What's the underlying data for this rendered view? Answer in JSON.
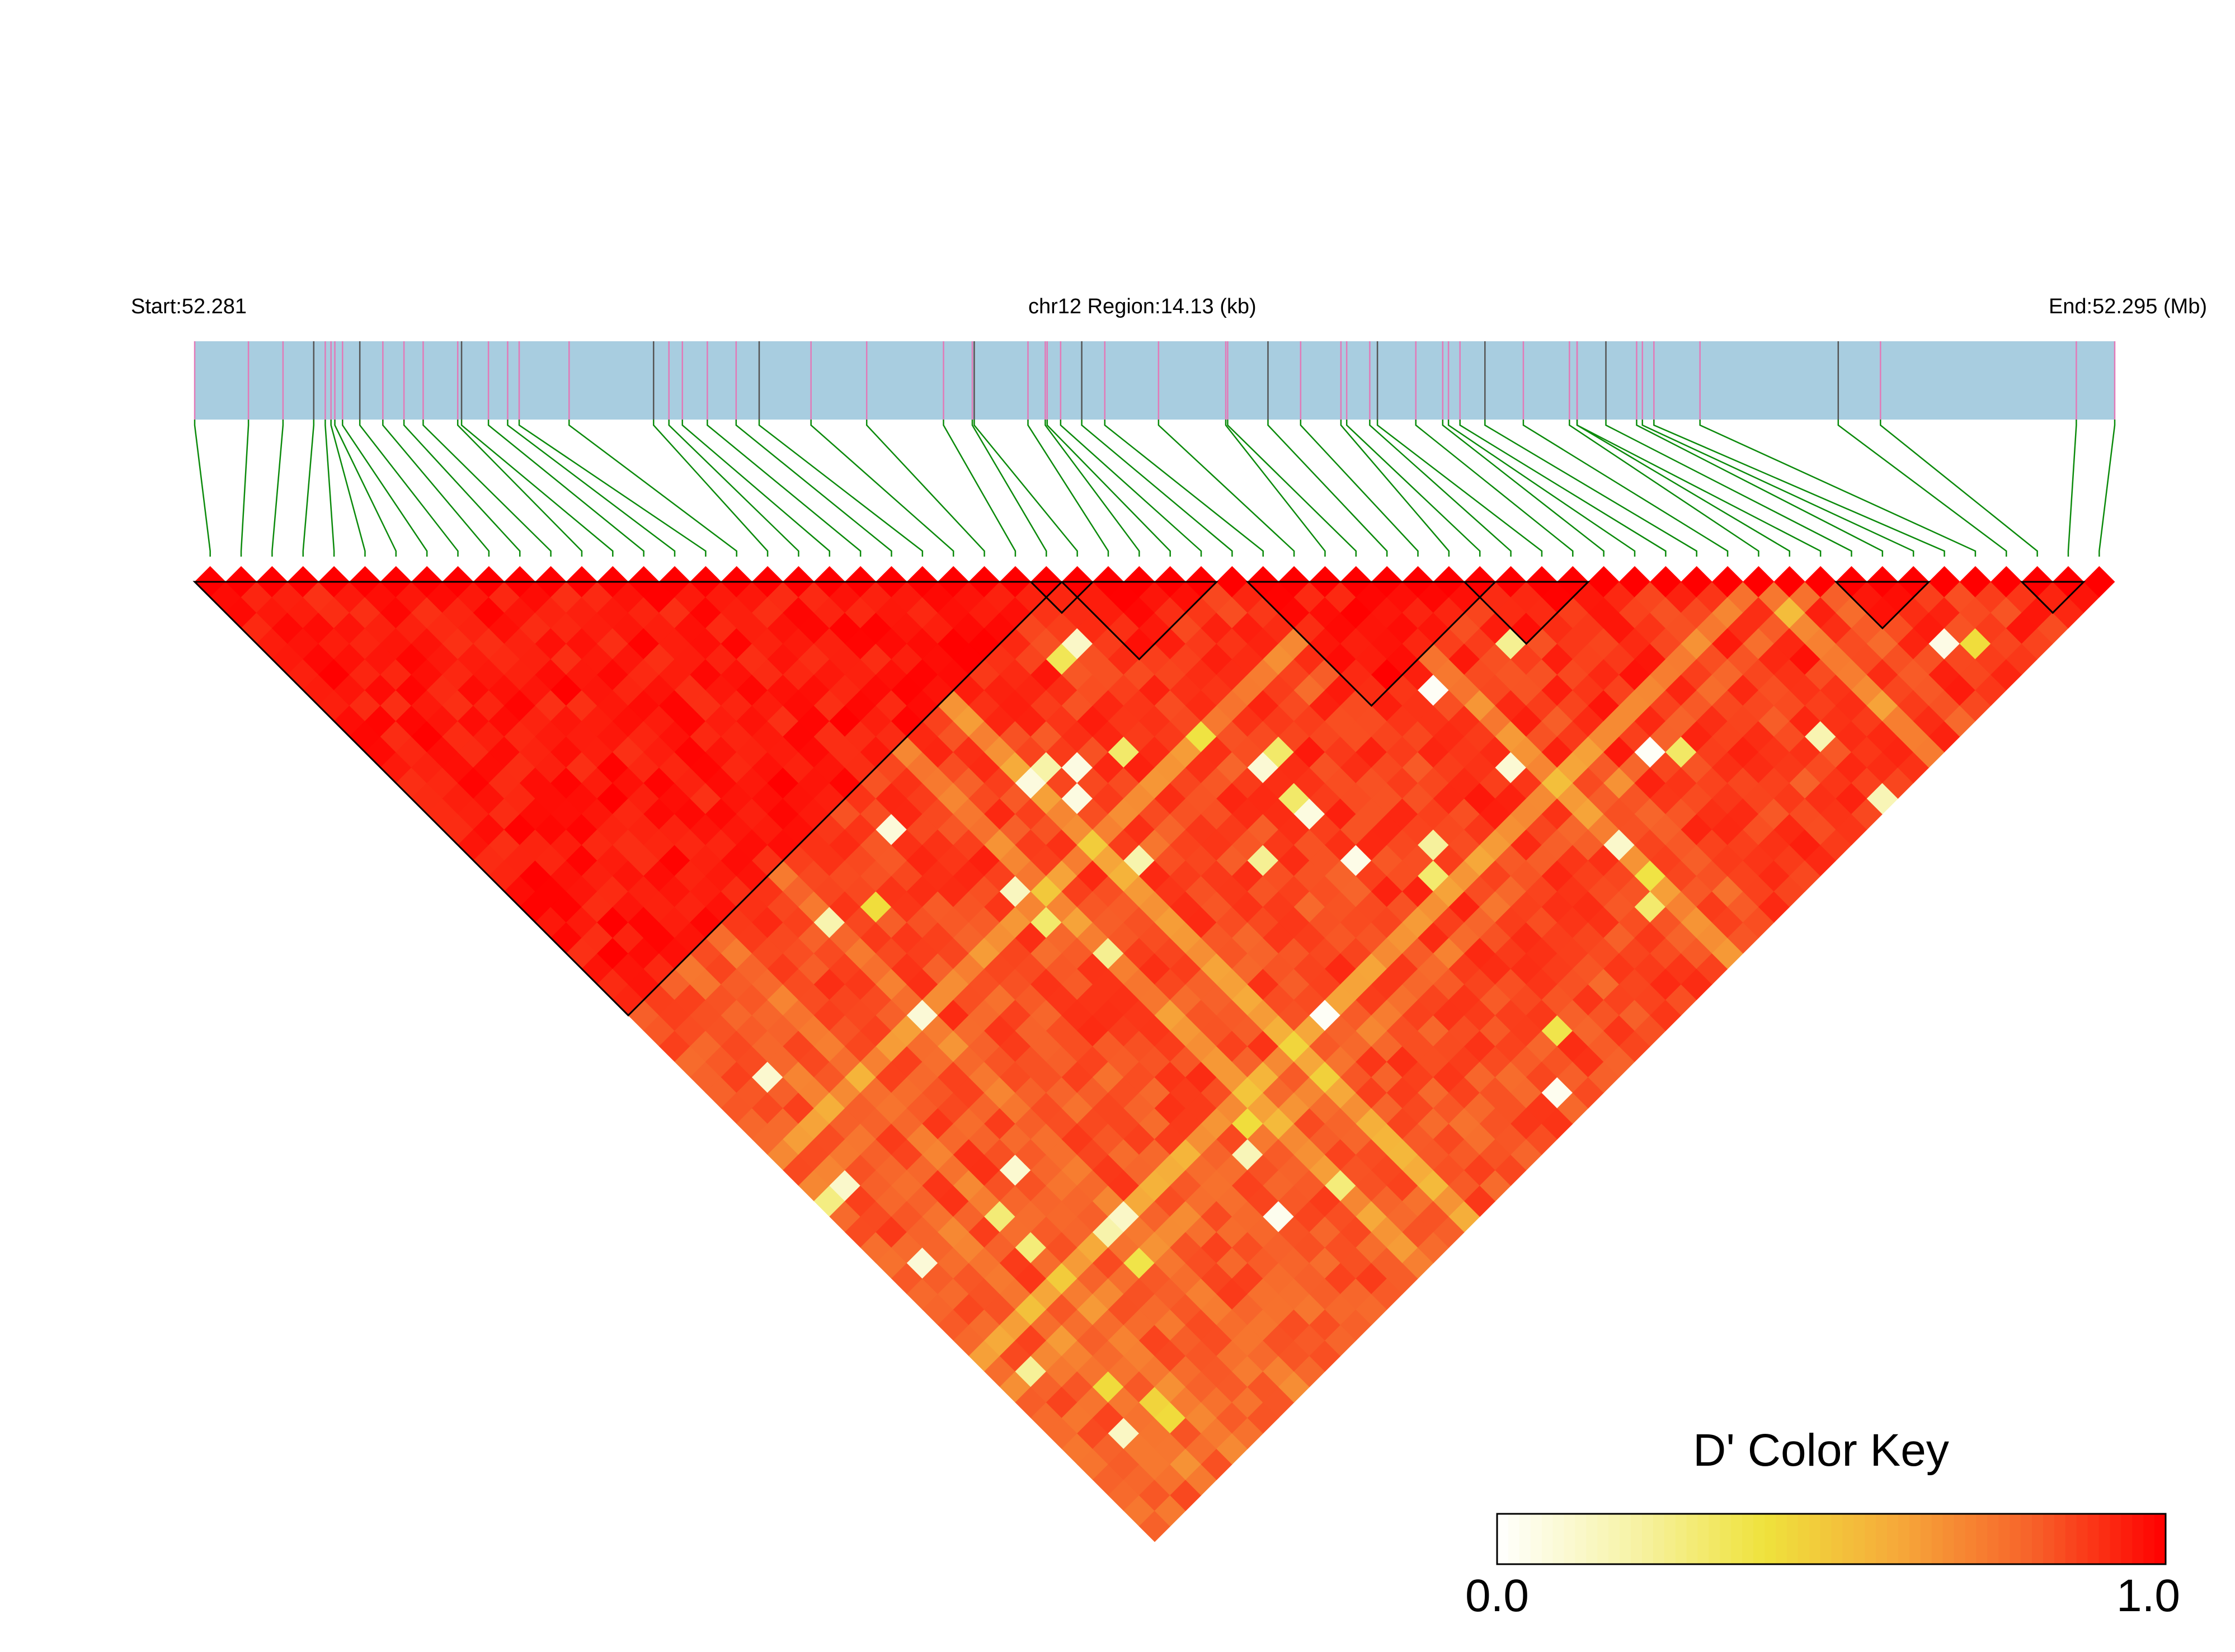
{
  "chart_data": {
    "type": "heatmap",
    "subtype": "linkage-disequilibrium-triangle",
    "header": {
      "start_label": "Start:52.281",
      "region_label": "chr12 Region:14.13 (kb)",
      "end_label": "End:52.295 (Mb)"
    },
    "region": {
      "chromosome": "chr12",
      "start_mb": 52.281,
      "end_mb": 52.295,
      "length_kb": 14.13
    },
    "snp_count": 62,
    "snp_positions_fraction": [
      0.0,
      0.028,
      0.046,
      0.062,
      0.068,
      0.071,
      0.073,
      0.077,
      0.086,
      0.098,
      0.109,
      0.119,
      0.137,
      0.139,
      0.153,
      0.163,
      0.169,
      0.195,
      0.239,
      0.247,
      0.254,
      0.267,
      0.282,
      0.294,
      0.321,
      0.35,
      0.39,
      0.405,
      0.406,
      0.434,
      0.443,
      0.444,
      0.451,
      0.462,
      0.474,
      0.502,
      0.537,
      0.538,
      0.559,
      0.576,
      0.597,
      0.6,
      0.612,
      0.616,
      0.636,
      0.65,
      0.653,
      0.659,
      0.672,
      0.692,
      0.716,
      0.72,
      0.72,
      0.735,
      0.751,
      0.754,
      0.76,
      0.784,
      0.856,
      0.878,
      0.98,
      1.0
    ],
    "snp_tick_colors": [
      "#e27ab8",
      "#555555"
    ],
    "dprime_range": [
      0.0,
      1.0
    ],
    "dprime_pattern": "mostly strong LD (D' 0.7-1.0) with scattered moderate and low pairs",
    "ld_blocks": [
      {
        "first_snp": 1,
        "last_snp": 28
      },
      {
        "first_snp": 28,
        "last_snp": 29
      },
      {
        "first_snp": 29,
        "last_snp": 33
      },
      {
        "first_snp": 35,
        "last_snp": 42
      },
      {
        "first_snp": 42,
        "last_snp": 45
      },
      {
        "first_snp": 54,
        "last_snp": 56
      },
      {
        "first_snp": 60,
        "last_snp": 61
      }
    ],
    "color_key": {
      "title": "D' Color Key",
      "min_label": "0.0",
      "max_label": "1.0",
      "stops": [
        "#ffffff",
        "#f7f3a8",
        "#efe23c",
        "#f6a93a",
        "#f7622a",
        "#ff0000"
      ]
    },
    "colors": {
      "gene_track": "#a8cde0",
      "connector_lines": "#0b8a0b",
      "block_outline": "#000000"
    }
  }
}
